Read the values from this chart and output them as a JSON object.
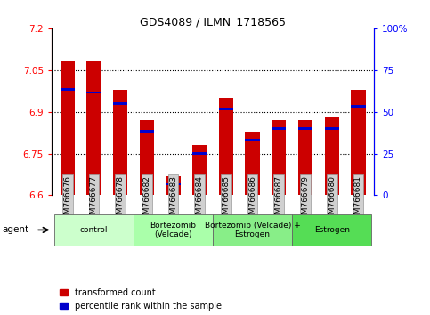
{
  "title": "GDS4089 / ILMN_1718565",
  "samples": [
    "GSM766676",
    "GSM766677",
    "GSM766678",
    "GSM766682",
    "GSM766683",
    "GSM766684",
    "GSM766685",
    "GSM766686",
    "GSM766687",
    "GSM766679",
    "GSM766680",
    "GSM766681"
  ],
  "red_values": [
    7.08,
    7.08,
    6.98,
    6.87,
    6.67,
    6.78,
    6.95,
    6.83,
    6.87,
    6.87,
    6.88,
    6.98
  ],
  "blue_values": [
    6.98,
    6.97,
    6.93,
    6.83,
    6.64,
    6.75,
    6.91,
    6.8,
    6.84,
    6.84,
    6.84,
    6.92
  ],
  "ymin": 6.6,
  "ymax": 7.2,
  "yticks_left": [
    6.6,
    6.75,
    6.9,
    7.05,
    7.2
  ],
  "yticks_right": [
    0,
    25,
    50,
    75,
    100
  ],
  "grid_lines": [
    6.75,
    6.9,
    7.05
  ],
  "groups": [
    {
      "label": "control",
      "start": 0,
      "end": 3,
      "color": "#ccffcc"
    },
    {
      "label": "Bortezomib\n(Velcade)",
      "start": 3,
      "end": 6,
      "color": "#aaffaa"
    },
    {
      "label": "Bortezomib (Velcade) +\nEstrogen",
      "start": 6,
      "end": 9,
      "color": "#88ee88"
    },
    {
      "label": "Estrogen",
      "start": 9,
      "end": 12,
      "color": "#55dd55"
    }
  ],
  "legend_red": "transformed count",
  "legend_blue": "percentile rank within the sample",
  "bar_color_red": "#cc0000",
  "bar_color_blue": "#0000cc",
  "bar_width": 0.55,
  "agent_label": "agent"
}
